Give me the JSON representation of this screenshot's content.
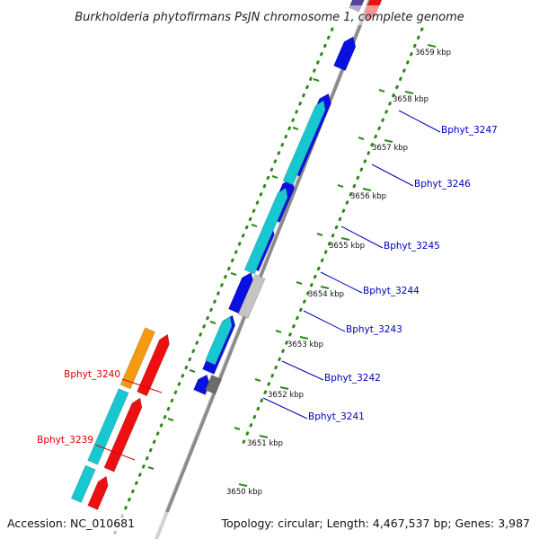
{
  "title": "Burkholderia phytofirmans PsJN chromosome 1, complete genome",
  "accession": "Accession: NC_010681",
  "topology": "Topology: circular; Length: 4,467,537 bp; Genes: 3,987",
  "colors": {
    "backbone": "#808080",
    "tick_mark": "#2d8a1a",
    "forward_gene_label": "#0000bb",
    "reverse_gene_label": "#dd0000"
  },
  "ticks": [
    {
      "label": "3650 kbp"
    },
    {
      "label": "3651 kbp"
    },
    {
      "label": "3652 kbp"
    },
    {
      "label": "3653 kbp"
    },
    {
      "label": "3654 kbp"
    },
    {
      "label": "3655 kbp"
    },
    {
      "label": "3656 kbp"
    },
    {
      "label": "3657 kbp"
    },
    {
      "label": "3658 kbp"
    },
    {
      "label": "3659 kbp"
    }
  ],
  "gene_labels_right": [
    {
      "label": "Bphyt_3247"
    },
    {
      "label": "Bphyt_3246"
    },
    {
      "label": "Bphyt_3245"
    },
    {
      "label": "Bphyt_3244"
    },
    {
      "label": "Bphyt_3243"
    },
    {
      "label": "Bphyt_3242"
    },
    {
      "label": "Bphyt_3241"
    }
  ],
  "gene_labels_left": [
    {
      "label": "Bphyt_3240"
    },
    {
      "label": "Bphyt_3239"
    }
  ]
}
